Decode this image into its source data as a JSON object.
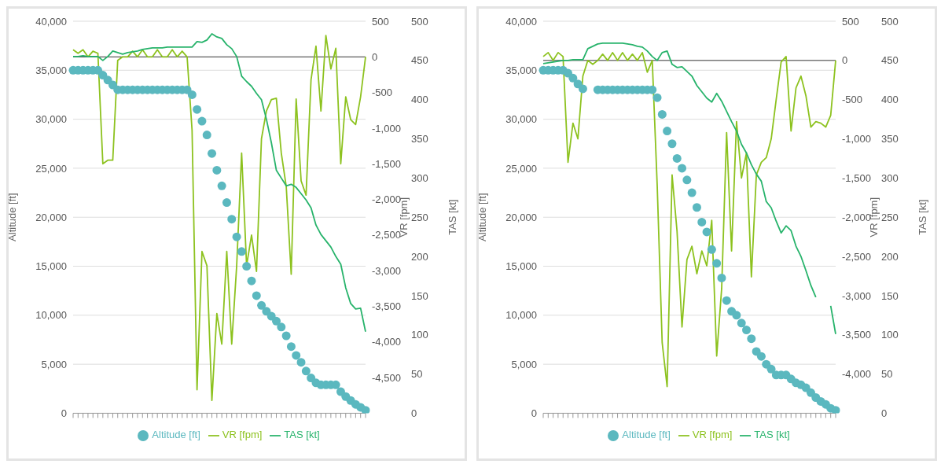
{
  "chart_data": [
    {
      "type": "line",
      "categories": [
        null,
        null,
        null,
        null,
        null,
        null,
        null,
        null,
        null,
        null,
        null,
        null,
        null,
        null,
        null,
        null,
        null,
        null,
        null,
        null,
        null,
        null,
        null,
        null,
        null,
        null,
        null,
        null,
        null,
        null,
        null,
        null,
        null,
        null,
        null,
        null,
        null,
        null,
        null,
        null,
        null,
        null,
        null,
        null,
        null,
        null,
        null,
        null,
        null,
        null,
        null,
        null,
        null,
        null,
        null,
        null,
        null,
        null,
        null,
        null
      ],
      "ylabel": "Altitude [ft]",
      "y2label": "VR [fpm]",
      "y3label": "TAS [kt]",
      "ylim": [
        0,
        40000
      ],
      "yticks": [
        0,
        {
          "value": 5000,
          "label": "5,000"
        },
        {
          "value": 10000,
          "label": "10,000"
        },
        {
          "value": 15000,
          "label": "15,000"
        },
        {
          "value": 20000,
          "label": "20,000"
        },
        {
          "value": 25000,
          "label": "25,000"
        },
        {
          "value": 30000,
          "label": "30,000"
        },
        {
          "value": 35000,
          "label": "35,000"
        },
        {
          "value": 40000,
          "label": "40,000"
        }
      ],
      "y2lim": [
        -5000,
        500
      ],
      "y2ticks": [
        500,
        0,
        -500,
        {
          "value": -1000,
          "label": "-1,000"
        },
        {
          "value": -1500,
          "label": "-1,500"
        },
        {
          "value": -2000,
          "label": "-2,000"
        },
        {
          "value": -2500,
          "label": "-2,500"
        },
        {
          "value": -3000,
          "label": "-3,000"
        },
        {
          "value": -3500,
          "label": "-3,500"
        },
        {
          "value": -4000,
          "label": "-4,000"
        },
        {
          "value": -4500,
          "label": "-4,500"
        }
      ],
      "y3lim": [
        0,
        500
      ],
      "y3ticks": [
        0,
        50,
        100,
        150,
        200,
        250,
        300,
        350,
        400,
        450,
        500
      ],
      "grid": "y",
      "legend": "bottom",
      "ref_lines": [
        {
          "axis": "y2",
          "value": 0,
          "color": "#333333"
        }
      ],
      "series": [
        {
          "name": "Altitude [ft]",
          "type": "scatter",
          "marker": "circle",
          "color": "#5bb8bf",
          "values": [
            35000,
            35000,
            35000,
            35000,
            35000,
            35000,
            34500,
            34000,
            33500,
            33000,
            33000,
            33000,
            33000,
            33000,
            33000,
            33000,
            33000,
            33000,
            33000,
            33000,
            33000,
            33000,
            33000,
            33000,
            32500,
            31000,
            29800,
            28400,
            26500,
            24800,
            23200,
            21500,
            19800,
            18000,
            16500,
            15000,
            13500,
            12000,
            11000,
            10400,
            9900,
            9400,
            8800,
            7900,
            6800,
            5900,
            5200,
            4300,
            3600,
            3100,
            2900,
            2900,
            2900,
            2900,
            2200,
            1700,
            1300,
            900,
            600,
            300
          ]
        },
        {
          "name": "VR [fpm]",
          "axis": "y2",
          "marker": "none",
          "color": "#8dc21f",
          "values": [
            100,
            50,
            100,
            0,
            80,
            50,
            -1500,
            -1450,
            -1450,
            -50,
            0,
            0,
            80,
            0,
            100,
            0,
            0,
            100,
            0,
            0,
            100,
            0,
            80,
            0,
            -1030,
            -4670,
            -2730,
            -2930,
            -4820,
            -3600,
            -4030,
            -2730,
            -4030,
            -2930,
            -1350,
            -2930,
            -2500,
            -3010,
            -1150,
            -760,
            -600,
            -580,
            -1350,
            -1820,
            -3050,
            -590,
            -1740,
            -1940,
            -320,
            150,
            -760,
            300,
            -170,
            120,
            -1500,
            -560,
            -880,
            -950,
            -560,
            0
          ]
        },
        {
          "name": "TAS [kt]",
          "axis": "y3",
          "marker": "none",
          "color": "#27b36b",
          "values": [
            455,
            455,
            456,
            455,
            455,
            455,
            450,
            455,
            462,
            460,
            458,
            460,
            461,
            462,
            464,
            465,
            466,
            466,
            466,
            467,
            467,
            467,
            467,
            467,
            467,
            474,
            473,
            476,
            484,
            480,
            478,
            470,
            465,
            455,
            430,
            423,
            417,
            408,
            400,
            375,
            345,
            310,
            300,
            290,
            292,
            288,
            280,
            272,
            262,
            240,
            228,
            220,
            212,
            200,
            190,
            160,
            140,
            133,
            134,
            104
          ]
        }
      ]
    },
    {
      "type": "line",
      "categories": [
        null,
        null,
        null,
        null,
        null,
        null,
        null,
        null,
        null,
        null,
        null,
        null,
        null,
        null,
        null,
        null,
        null,
        null,
        null,
        null,
        null,
        null,
        null,
        null,
        null,
        null,
        null,
        null,
        null,
        null,
        null,
        null,
        null,
        null,
        null,
        null,
        null,
        null,
        null,
        null,
        null,
        null,
        null,
        null,
        null,
        null,
        null,
        null,
        null,
        null,
        null,
        null,
        null,
        null,
        null,
        null,
        null,
        null,
        null,
        null
      ],
      "ylabel": "Altitude [ft]",
      "y2label": "VR [fpm]",
      "y3label": "TAS [kt]",
      "ylim": [
        0,
        40000
      ],
      "yticks": [
        0,
        {
          "value": 5000,
          "label": "5,000"
        },
        {
          "value": 10000,
          "label": "10,000"
        },
        {
          "value": 15000,
          "label": "15,000"
        },
        {
          "value": 20000,
          "label": "20,000"
        },
        {
          "value": 25000,
          "label": "25,000"
        },
        {
          "value": 30000,
          "label": "30,000"
        },
        {
          "value": 35000,
          "label": "35,000"
        },
        {
          "value": 40000,
          "label": "40,000"
        }
      ],
      "y2lim": [
        -4500,
        500
      ],
      "y2ticks": [
        500,
        0,
        -500,
        {
          "value": -1000,
          "label": "-1,000"
        },
        {
          "value": -1500,
          "label": "-1,500"
        },
        {
          "value": -2000,
          "label": "-2,000"
        },
        {
          "value": -2500,
          "label": "-2,500"
        },
        {
          "value": -3000,
          "label": "-3,000"
        },
        {
          "value": -3500,
          "label": "-3,500"
        },
        {
          "value": -4000,
          "label": "-4,000"
        }
      ],
      "y3lim": [
        0,
        500
      ],
      "y3ticks": [
        0,
        50,
        100,
        150,
        200,
        250,
        300,
        350,
        400,
        450,
        500
      ],
      "grid": "y",
      "legend": "bottom",
      "ref_lines": [
        {
          "axis": "y2",
          "value": 0,
          "color": "#333333"
        }
      ],
      "series": [
        {
          "name": "Altitude [ft]",
          "type": "scatter",
          "marker": "circle",
          "color": "#5bb8bf",
          "values": [
            35000,
            35000,
            35000,
            35000,
            35000,
            34700,
            34200,
            33600,
            33100,
            null,
            null,
            33000,
            33000,
            33000,
            33000,
            33000,
            33000,
            33000,
            33000,
            33000,
            33000,
            33000,
            33000,
            32200,
            30500,
            28800,
            27500,
            26000,
            25000,
            23800,
            22500,
            21000,
            19500,
            18500,
            16700,
            15300,
            13800,
            11500,
            10400,
            10000,
            9200,
            8500,
            7600,
            6300,
            5800,
            5000,
            4500,
            3900,
            3900,
            3900,
            3500,
            3100,
            2900,
            2600,
            2100,
            1600,
            1200,
            900,
            500,
            300
          ]
        },
        {
          "name": "VR [fpm]",
          "axis": "y2",
          "marker": "none",
          "color": "#8dc21f",
          "values": [
            50,
            100,
            0,
            100,
            50,
            -1300,
            -800,
            -1000,
            -200,
            0,
            -50,
            0,
            80,
            0,
            100,
            0,
            100,
            0,
            80,
            0,
            100,
            -150,
            0,
            -1600,
            -3600,
            -4160,
            -1460,
            -2180,
            -3400,
            -2540,
            -2370,
            -2720,
            -2430,
            -2620,
            -2040,
            -3770,
            -2910,
            -920,
            -2430,
            -780,
            -1500,
            -1180,
            -2760,
            -1460,
            -1300,
            -1240,
            -1000,
            -500,
            -20,
            50,
            -900,
            -350,
            -200,
            -450,
            -850,
            -780,
            -800,
            -850,
            -700,
            0
          ]
        },
        {
          "name": "TAS [kt]",
          "axis": "y3",
          "marker": "none",
          "color": "#27b36b",
          "values": [
            446,
            447,
            448,
            449,
            450,
            450,
            451,
            451,
            451,
            465,
            468,
            471,
            472,
            472,
            472,
            472,
            472,
            471,
            470,
            468,
            467,
            462,
            455,
            450,
            460,
            462,
            445,
            441,
            442,
            436,
            430,
            418,
            410,
            402,
            397,
            408,
            398,
            385,
            372,
            360,
            343,
            332,
            317,
            305,
            296,
            270,
            262,
            245,
            230,
            239,
            233,
            213,
            200,
            182,
            163,
            148,
            null,
            null,
            137,
            101
          ]
        }
      ]
    }
  ]
}
